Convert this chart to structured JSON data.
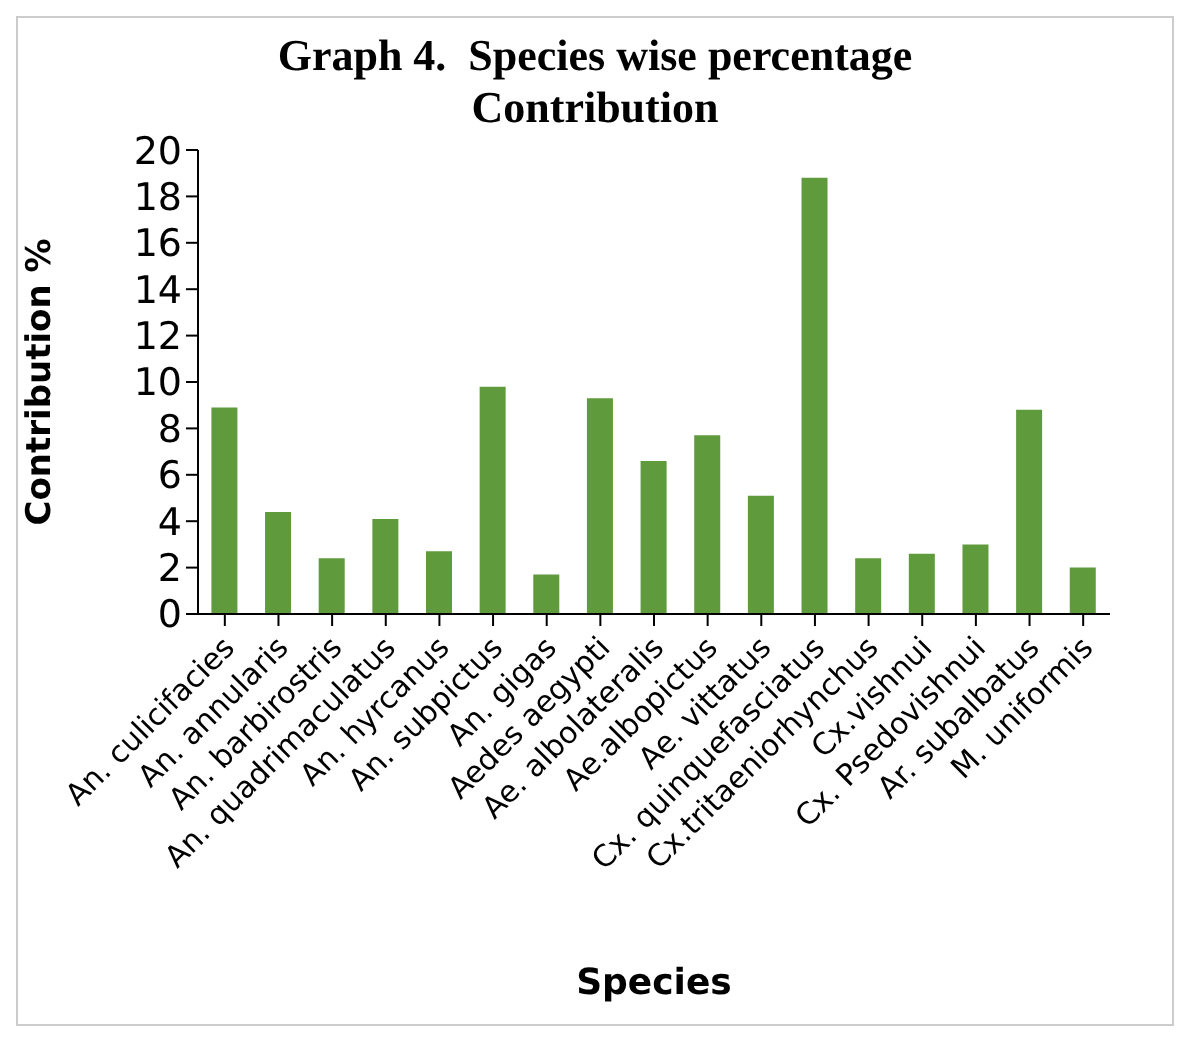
{
  "chart_data": {
    "type": "bar",
    "title": "Graph 4.  Species wise percentage Contribution",
    "xlabel": "Species",
    "ylabel": "Contribution %",
    "categories": [
      "An. culicifacies",
      "An. annularis",
      "An. barbirostris",
      "An. quadrimaculatus",
      "An. hyrcanus",
      "An. subpictus",
      "An. gigas",
      "Aedes aegypti",
      "Ae. albolateralis",
      "Ae.albopictus",
      "Ae. vittatus",
      "Cx. quinquefasciatus",
      "Cx.tritaeniorhynchus",
      "Cx.vishnui",
      "Cx. Psedovishnui",
      "Ar. subalbatus",
      "M. uniformis"
    ],
    "values": [
      8.9,
      4.4,
      2.4,
      4.1,
      2.7,
      9.8,
      1.7,
      9.3,
      6.6,
      7.7,
      5.1,
      18.8,
      2.4,
      2.6,
      3.0,
      8.8,
      2.0
    ],
    "color": "#5f9a3c",
    "ylim": [
      0,
      20
    ],
    "yticks": [
      0,
      2,
      4,
      6,
      8,
      10,
      12,
      14,
      16,
      18,
      20
    ],
    "grid": false
  }
}
